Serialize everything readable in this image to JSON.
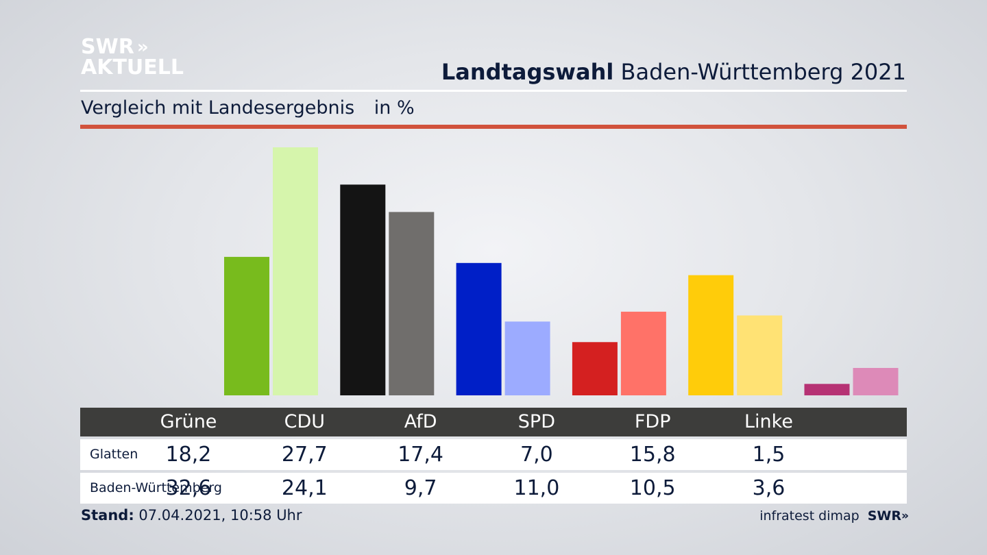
{
  "brand": {
    "logo_line1": "SWR",
    "logo_chevrons": "»",
    "logo_line2": "AKTUELL"
  },
  "header": {
    "title_bold": "Landtagswahl",
    "title_rest": "Baden-Württemberg 2021",
    "subtitle": "Vergleich mit Landesergebnis",
    "unit": "in %"
  },
  "colors": {
    "accent_red": "#d1523c",
    "table_header": "#3d3d3b"
  },
  "chart_data": {
    "type": "bar",
    "categories": [
      "Grüne",
      "CDU",
      "AfD",
      "SPD",
      "FDP",
      "Linke"
    ],
    "series": [
      {
        "name": "Glatten",
        "values": [
          18.2,
          27.7,
          17.4,
          7.0,
          15.8,
          1.5
        ],
        "colors": [
          "#78bb1d",
          "#141414",
          "#001fc7",
          "#d42020",
          "#ffcc0a",
          "#b63274"
        ]
      },
      {
        "name": "Baden-Württemberg",
        "values": [
          32.6,
          24.1,
          9.7,
          11.0,
          10.5,
          3.6
        ],
        "colors": [
          "#d6f5ac",
          "#706e6c",
          "#9cabff",
          "#ff7268",
          "#ffe274",
          "#dd8ab8"
        ]
      }
    ],
    "ylim": [
      0,
      32.6
    ],
    "grid": false,
    "legend": "none"
  },
  "table": {
    "headers": [
      "Grüne",
      "CDU",
      "AfD",
      "SPD",
      "FDP",
      "Linke"
    ],
    "rows": [
      {
        "label": "Glatten",
        "values": [
          "18,2",
          "27,7",
          "17,4",
          "7,0",
          "15,8",
          "1,5"
        ]
      },
      {
        "label": "Baden-Württemberg",
        "values": [
          "32,6",
          "24,1",
          "9,7",
          "11,0",
          "10,5",
          "3,6"
        ]
      }
    ]
  },
  "footer": {
    "stand_label": "Stand:",
    "stand_value": "07.04.2021, 10:58 Uhr",
    "source": "infratest dimap",
    "source_logo": "SWR",
    "source_logo_chevrons": "»"
  }
}
